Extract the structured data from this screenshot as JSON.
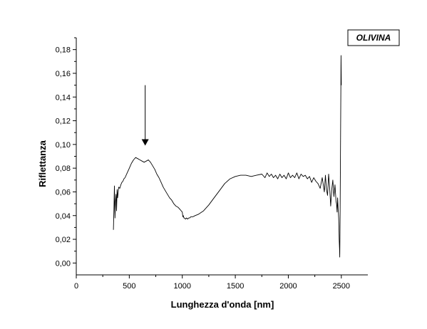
{
  "chart_data": {
    "type": "line",
    "title": "",
    "xlabel": "Lunghezza d'onda [nm]",
    "ylabel": "Riflettanza",
    "xlim": [
      0,
      2750
    ],
    "ylim": [
      -0.01,
      0.19
    ],
    "x_ticks": [
      0,
      500,
      1000,
      1500,
      2000,
      2500
    ],
    "x_tick_labels": [
      "0",
      "500",
      "1000",
      "1500",
      "2000",
      "2500"
    ],
    "y_ticks": [
      0.0,
      0.02,
      0.04,
      0.06,
      0.08,
      0.1,
      0.12,
      0.14,
      0.16,
      0.18
    ],
    "y_tick_labels": [
      "0,00",
      "0,02",
      "0,04",
      "0,06",
      "0,08",
      "0,10",
      "0,12",
      "0,14",
      "0,16",
      "0,18"
    ],
    "grid": false,
    "legend_box_text": "OLIVINA",
    "legend_position": "top-right",
    "line_color": "#000000",
    "annotation": {
      "type": "arrow",
      "x": 650,
      "y_from": 0.15,
      "y_to": 0.099
    },
    "series": [
      {
        "x": [
          350,
          355,
          360,
          365,
          370,
          375,
          380,
          385,
          390,
          400,
          410,
          420,
          430,
          440,
          450,
          460,
          480,
          500,
          520,
          540,
          560,
          580,
          600,
          620,
          640,
          660,
          680,
          700,
          720,
          740,
          760,
          780,
          800,
          820,
          840,
          860,
          880,
          900,
          920,
          940,
          960,
          980,
          990,
          1000,
          1005,
          1010,
          1015,
          1020,
          1030,
          1040,
          1050,
          1060,
          1070,
          1080,
          1100,
          1120,
          1150,
          1200,
          1250,
          1300,
          1350,
          1400,
          1450,
          1500,
          1550,
          1600,
          1650,
          1700,
          1750,
          1780,
          1800,
          1820,
          1840,
          1860,
          1880,
          1900,
          1920,
          1940,
          1960,
          1980,
          2000,
          2020,
          2040,
          2060,
          2080,
          2100,
          2120,
          2140,
          2160,
          2180,
          2200,
          2220,
          2240,
          2260,
          2280,
          2300,
          2320,
          2330,
          2340,
          2350,
          2360,
          2370,
          2380,
          2390,
          2400,
          2410,
          2420,
          2430,
          2440,
          2450,
          2455,
          2460,
          2465,
          2470,
          2475,
          2478,
          2480,
          2483,
          2485,
          2488,
          2490,
          2493,
          2495,
          2497,
          2500
        ],
        "y": [
          0.028,
          0.045,
          0.065,
          0.038,
          0.052,
          0.058,
          0.044,
          0.062,
          0.055,
          0.064,
          0.063,
          0.066,
          0.068,
          0.069,
          0.071,
          0.072,
          0.076,
          0.08,
          0.084,
          0.087,
          0.089,
          0.088,
          0.087,
          0.086,
          0.085,
          0.086,
          0.087,
          0.085,
          0.082,
          0.079,
          0.075,
          0.072,
          0.068,
          0.064,
          0.061,
          0.058,
          0.055,
          0.053,
          0.05,
          0.048,
          0.047,
          0.045,
          0.044,
          0.043,
          0.039,
          0.04,
          0.038,
          0.038,
          0.037,
          0.038,
          0.037,
          0.038,
          0.038,
          0.039,
          0.039,
          0.04,
          0.041,
          0.044,
          0.049,
          0.055,
          0.061,
          0.067,
          0.071,
          0.073,
          0.074,
          0.074,
          0.073,
          0.074,
          0.075,
          0.072,
          0.076,
          0.073,
          0.075,
          0.072,
          0.074,
          0.071,
          0.075,
          0.072,
          0.074,
          0.071,
          0.076,
          0.072,
          0.074,
          0.072,
          0.076,
          0.071,
          0.075,
          0.073,
          0.074,
          0.071,
          0.073,
          0.068,
          0.072,
          0.069,
          0.067,
          0.063,
          0.072,
          0.066,
          0.06,
          0.074,
          0.062,
          0.057,
          0.075,
          0.063,
          0.048,
          0.062,
          0.07,
          0.056,
          0.066,
          0.052,
          0.05,
          0.043,
          0.055,
          0.045,
          0.038,
          0.03,
          0.02,
          0.012,
          0.005,
          0.03,
          0.06,
          0.11,
          0.14,
          0.175,
          0.15
        ]
      }
    ]
  }
}
